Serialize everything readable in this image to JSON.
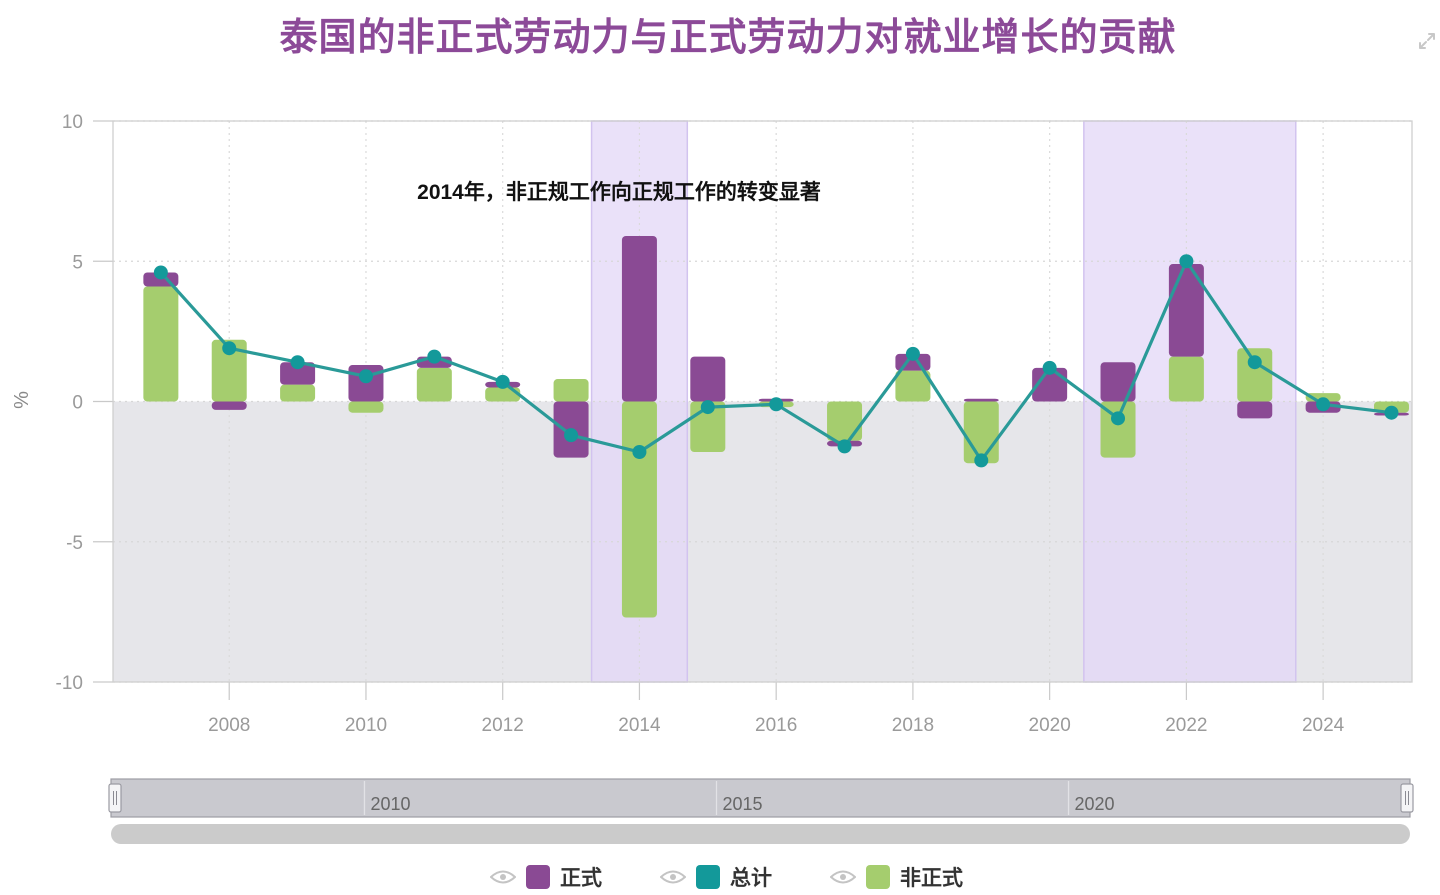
{
  "title": "泰国的非正式劳动力与正式劳动力对就业增长的贡献",
  "annotation": "2014年，非正规工作向正规工作的转变显著",
  "navigator": {
    "labels": [
      "2010",
      "2015",
      "2020"
    ]
  },
  "colors": {
    "formal": "#8a4a94",
    "total": "#13999a",
    "total_line": "#2a9a98",
    "informal": "#a5cd6e",
    "highlight": "#e3d7f7",
    "negative_area": "#e6e6ea",
    "title": "#8c4a98"
  },
  "icons": {
    "expand": "expand-icon",
    "visibility": "eye-icon"
  },
  "legend": [
    {
      "key": "formal",
      "label": "正式",
      "color": "#8a4a94"
    },
    {
      "key": "total",
      "label": "总计",
      "color": "#13999a"
    },
    {
      "key": "informal",
      "label": "非正式",
      "color": "#a5cd6e"
    }
  ],
  "chart_data": {
    "type": "bar",
    "stacked": true,
    "title": "泰国的非正式劳动力与正式劳动力对就业增长的贡献",
    "xlabel": "",
    "ylabel": "%",
    "ylim": [
      -10,
      10
    ],
    "xlim": [
      2006.3,
      2025.3
    ],
    "y_ticks": [
      10,
      5,
      0,
      -5,
      -10
    ],
    "x_ticks": [
      2008,
      2010,
      2012,
      2014,
      2016,
      2018,
      2020,
      2022,
      2024
    ],
    "grid": true,
    "legend_position": "bottom",
    "x": [
      2007,
      2008,
      2009,
      2010,
      2011,
      2012,
      2013,
      2014,
      2015,
      2016,
      2017,
      2018,
      2019,
      2020,
      2021,
      2022,
      2023,
      2024,
      2025
    ],
    "series": [
      {
        "name": "正式",
        "type": "bar",
        "values": [
          0.5,
          -0.3,
          0.8,
          1.3,
          0.4,
          0.2,
          -2.0,
          5.9,
          1.6,
          0.1,
          -0.2,
          0.6,
          0.1,
          1.2,
          1.4,
          3.3,
          -0.6,
          -0.4,
          -0.1
        ]
      },
      {
        "name": "非正式",
        "type": "bar",
        "values": [
          4.1,
          2.2,
          0.6,
          -0.4,
          1.2,
          0.5,
          0.8,
          -7.7,
          -1.8,
          -0.2,
          -1.4,
          1.1,
          -2.2,
          0.0,
          -2.0,
          1.6,
          1.9,
          0.3,
          -0.4
        ]
      },
      {
        "name": "总计",
        "type": "line",
        "values": [
          4.6,
          1.9,
          1.4,
          0.9,
          1.6,
          0.7,
          -1.2,
          -1.8,
          -0.2,
          -0.1,
          -1.6,
          1.7,
          -2.1,
          1.2,
          -0.6,
          5.0,
          1.4,
          -0.1,
          -0.4
        ]
      }
    ],
    "highlight_ranges": [
      [
        2013.3,
        2014.7
      ],
      [
        2020.5,
        2023.6
      ]
    ],
    "annotations": [
      {
        "text": "2014年，非正规工作向正规工作的转变显著",
        "x": 2014
      }
    ]
  }
}
